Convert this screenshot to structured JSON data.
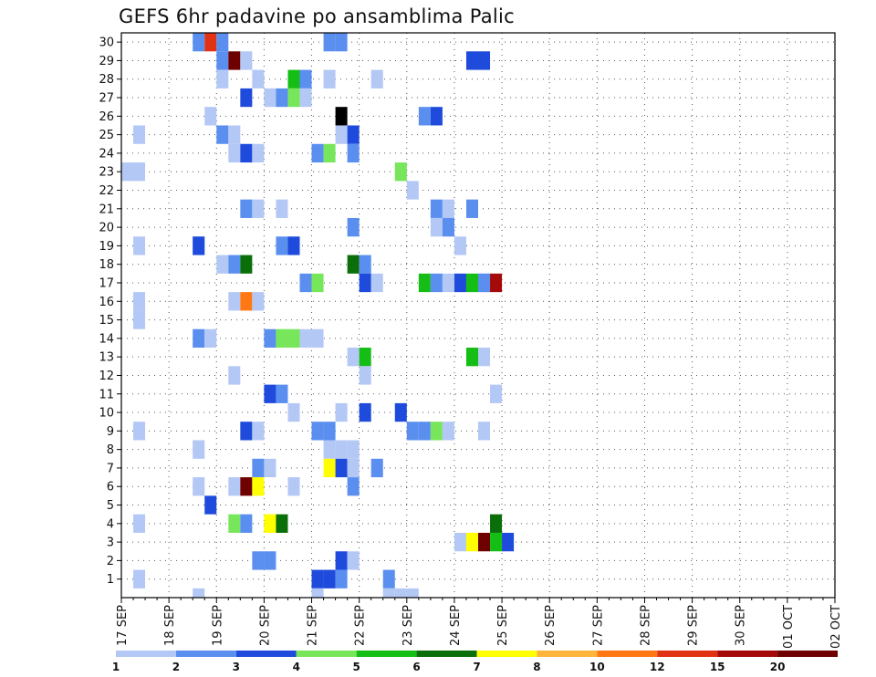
{
  "chart_data": {
    "type": "heatmap",
    "title": "GEFS 6hr padavine po ansamblima Palic",
    "xlabel": "",
    "ylabel": "",
    "grid": true,
    "x_tick_labels": [
      "17 SEP",
      "18 SEP",
      "19 SEP",
      "20 SEP",
      "21 SEP",
      "22 SEP",
      "23 SEP",
      "24 SEP",
      "25 SEP",
      "26 SEP",
      "27 SEP",
      "28 SEP",
      "29 SEP",
      "30 SEP",
      "01 OCT",
      "02 OCT"
    ],
    "y_tick_labels": [
      "1",
      "2",
      "3",
      "4",
      "5",
      "6",
      "7",
      "8",
      "9",
      "10",
      "11",
      "12",
      "13",
      "14",
      "15",
      "16",
      "17",
      "18",
      "19",
      "20",
      "21",
      "22",
      "23",
      "24",
      "25",
      "26",
      "27",
      "28",
      "29",
      "30"
    ],
    "x_step_hours": 6,
    "legend": {
      "placement": "bottom",
      "labels": [
        "1",
        "2",
        "3",
        "4",
        "5",
        "6",
        "7",
        "8",
        "10",
        "12",
        "15",
        "20"
      ],
      "colors": [
        "#b4c8f5",
        "#5a8ff0",
        "#1e4bdc",
        "#78e65a",
        "#14be14",
        "#0a6e0a",
        "#ffff00",
        "#ffb43c",
        "#ff7814",
        "#e13214",
        "#a50a0a",
        "#6e0000"
      ]
    },
    "cells": [
      {
        "member": 30,
        "steps": [
          [
            6,
            1
          ],
          [
            7,
            9
          ],
          [
            8,
            1
          ],
          [
            17,
            1
          ],
          [
            18,
            1
          ]
        ]
      },
      {
        "member": 29,
        "steps": [
          [
            8,
            1
          ],
          [
            9,
            11
          ],
          [
            10,
            0
          ],
          [
            29,
            2
          ],
          [
            30,
            2
          ]
        ]
      },
      {
        "member": 28,
        "steps": [
          [
            8,
            0
          ],
          [
            11,
            0
          ],
          [
            14,
            4
          ],
          [
            15,
            1
          ],
          [
            17,
            0
          ],
          [
            21,
            0
          ]
        ]
      },
      {
        "member": 27,
        "steps": [
          [
            10,
            2
          ],
          [
            12,
            0
          ],
          [
            13,
            1
          ],
          [
            14,
            3
          ],
          [
            15,
            0
          ]
        ]
      },
      {
        "member": 26,
        "steps": [
          [
            7,
            0
          ],
          [
            18,
            12
          ],
          [
            25,
            1
          ],
          [
            26,
            2
          ]
        ]
      },
      {
        "member": 25,
        "steps": [
          [
            1,
            0
          ],
          [
            8,
            1
          ],
          [
            9,
            0
          ],
          [
            18,
            0
          ],
          [
            19,
            2
          ]
        ]
      },
      {
        "member": 24,
        "steps": [
          [
            9,
            0
          ],
          [
            10,
            2
          ],
          [
            11,
            0
          ],
          [
            16,
            1
          ],
          [
            17,
            3
          ],
          [
            19,
            1
          ]
        ]
      },
      {
        "member": 23,
        "steps": [
          [
            0,
            0
          ],
          [
            1,
            0
          ],
          [
            23,
            3
          ]
        ]
      },
      {
        "member": 22,
        "steps": [
          [
            24,
            0
          ]
        ]
      },
      {
        "member": 21,
        "steps": [
          [
            10,
            1
          ],
          [
            11,
            0
          ],
          [
            13,
            0
          ],
          [
            26,
            1
          ],
          [
            27,
            0
          ],
          [
            29,
            1
          ]
        ]
      },
      {
        "member": 20,
        "steps": [
          [
            19,
            1
          ],
          [
            26,
            0
          ],
          [
            27,
            1
          ]
        ]
      },
      {
        "member": 19,
        "steps": [
          [
            1,
            0
          ],
          [
            6,
            0
          ],
          [
            6,
            2
          ],
          [
            13,
            1
          ],
          [
            14,
            2
          ],
          [
            28,
            0
          ]
        ]
      },
      {
        "member": 18,
        "steps": [
          [
            8,
            0
          ],
          [
            9,
            1
          ],
          [
            10,
            5
          ],
          [
            19,
            5
          ],
          [
            20,
            1
          ]
        ]
      },
      {
        "member": 17,
        "steps": [
          [
            15,
            1
          ],
          [
            16,
            3
          ],
          [
            20,
            2
          ],
          [
            21,
            0
          ],
          [
            25,
            4
          ],
          [
            26,
            1
          ],
          [
            27,
            0
          ],
          [
            28,
            2
          ],
          [
            29,
            4
          ],
          [
            30,
            0
          ],
          [
            30,
            1
          ],
          [
            31,
            10
          ]
        ]
      },
      {
        "member": 16,
        "steps": [
          [
            1,
            0
          ],
          [
            9,
            0
          ],
          [
            10,
            8
          ],
          [
            11,
            0
          ]
        ]
      },
      {
        "member": 15,
        "steps": [
          [
            1,
            0
          ]
        ]
      },
      {
        "member": 14,
        "steps": [
          [
            6,
            1
          ],
          [
            7,
            0
          ],
          [
            12,
            1
          ],
          [
            13,
            3
          ],
          [
            14,
            3
          ],
          [
            15,
            0
          ],
          [
            16,
            0
          ]
        ]
      },
      {
        "member": 13,
        "steps": [
          [
            19,
            0
          ],
          [
            20,
            4
          ],
          [
            29,
            4
          ],
          [
            30,
            0
          ]
        ]
      },
      {
        "member": 12,
        "steps": [
          [
            9,
            0
          ],
          [
            20,
            0
          ]
        ]
      },
      {
        "member": 11,
        "steps": [
          [
            12,
            2
          ],
          [
            13,
            1
          ],
          [
            31,
            0
          ]
        ]
      },
      {
        "member": 10,
        "steps": [
          [
            14,
            0
          ],
          [
            18,
            0
          ],
          [
            20,
            2
          ],
          [
            23,
            2
          ]
        ]
      },
      {
        "member": 9,
        "steps": [
          [
            1,
            0
          ],
          [
            10,
            2
          ],
          [
            11,
            0
          ],
          [
            16,
            1
          ],
          [
            17,
            1
          ],
          [
            24,
            1
          ],
          [
            25,
            1
          ],
          [
            26,
            3
          ],
          [
            27,
            0
          ],
          [
            30,
            0
          ]
        ]
      },
      {
        "member": 8,
        "steps": [
          [
            6,
            0
          ],
          [
            17,
            0
          ],
          [
            18,
            0
          ],
          [
            19,
            0
          ]
        ]
      },
      {
        "member": 7,
        "steps": [
          [
            11,
            1
          ],
          [
            12,
            0
          ],
          [
            17,
            6
          ],
          [
            18,
            2
          ],
          [
            19,
            0
          ],
          [
            21,
            1
          ]
        ]
      },
      {
        "member": 6,
        "steps": [
          [
            6,
            0
          ],
          [
            9,
            0
          ],
          [
            10,
            11
          ],
          [
            11,
            6
          ],
          [
            14,
            0
          ],
          [
            19,
            1
          ]
        ]
      },
      {
        "member": 5,
        "steps": [
          [
            7,
            2
          ]
        ]
      },
      {
        "member": 4,
        "steps": [
          [
            1,
            0
          ],
          [
            9,
            3
          ],
          [
            10,
            1
          ],
          [
            12,
            6
          ],
          [
            13,
            5
          ],
          [
            31,
            5
          ]
        ]
      },
      {
        "member": 3,
        "steps": [
          [
            28,
            0
          ],
          [
            29,
            6
          ],
          [
            30,
            11
          ],
          [
            31,
            4
          ],
          [
            32,
            2
          ]
        ]
      },
      {
        "member": 2,
        "steps": [
          [
            11,
            1
          ],
          [
            12,
            1
          ],
          [
            18,
            2
          ],
          [
            19,
            0
          ]
        ]
      },
      {
        "member": 1,
        "steps": [
          [
            1,
            0
          ],
          [
            16,
            2
          ],
          [
            17,
            2
          ],
          [
            18,
            1
          ],
          [
            22,
            1
          ]
        ]
      },
      {
        "member": 0,
        "steps": [
          [
            6,
            0
          ],
          [
            16,
            0
          ],
          [
            22,
            0
          ],
          [
            23,
            0
          ],
          [
            24,
            0
          ]
        ]
      }
    ]
  }
}
